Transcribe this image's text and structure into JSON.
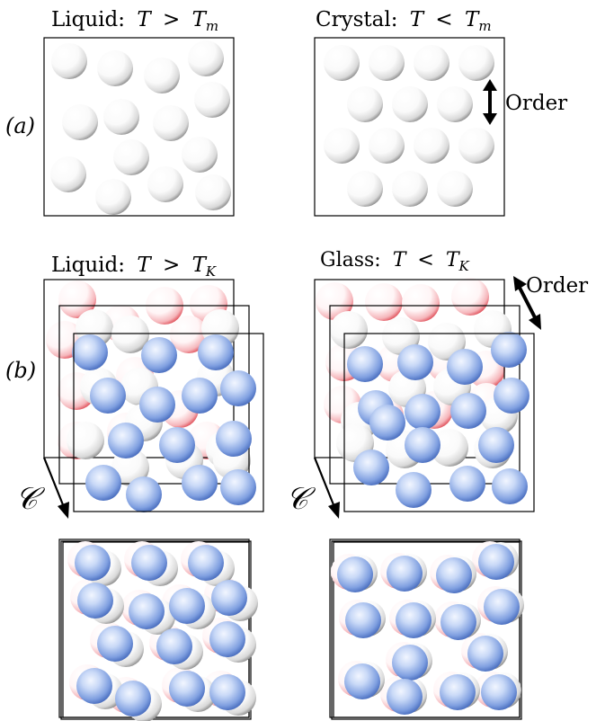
{
  "panel_a": {
    "label": "(a)",
    "left_title": {
      "word": "Liquid:",
      "var": "T",
      "rel": ">",
      "sym": "T",
      "sub": "m"
    },
    "right_title": {
      "word": "Crystal:",
      "var": "T",
      "rel": "<",
      "sym": "T",
      "sub": "m"
    },
    "order_label": "Order"
  },
  "panel_b": {
    "label": "(b)",
    "left_title": {
      "word": "Liquid:",
      "var": "T",
      "rel": ">",
      "sym": "T",
      "sub": "K"
    },
    "right_title": {
      "word": "Glass:",
      "var": "T",
      "rel": "<",
      "sym": "T",
      "sub": "K"
    },
    "order_label": "Order",
    "axis_symbol": "𝒞"
  },
  "colors": {
    "white_particle": "#ffffff",
    "white_particle_edge": "#8c8c8c",
    "red_particle_edge": "#e0505a",
    "blue_particle_center": "#e6f0ff",
    "blue_particle_edge": "#3f64b8",
    "frame": "#000000"
  }
}
